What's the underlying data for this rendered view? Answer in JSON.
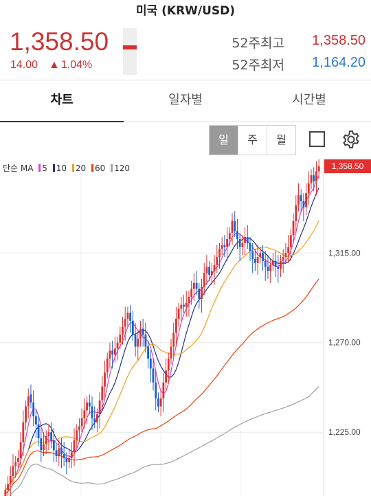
{
  "header": {
    "title": "미국 (KRW/USD)"
  },
  "quote": {
    "price": "1,358.50",
    "change": "14.00",
    "change_pct": "1.04%",
    "up_symbol": "▲",
    "week52_high_label": "52주최고",
    "week52_high": "1,358.50",
    "week52_low_label": "52주최저",
    "week52_low": "1,164.20"
  },
  "tabs": [
    {
      "label": "차트"
    },
    {
      "label": "일자별"
    },
    {
      "label": "시간별"
    }
  ],
  "period": {
    "day": "일",
    "week": "주",
    "month": "월"
  },
  "icons": {
    "checkbox": "square-outline-icon",
    "settings": "gear-icon"
  },
  "colors": {
    "up": "#e03030",
    "down": "#1a5fd0",
    "ma5": "#e040c0",
    "ma10": "#1f2f90",
    "ma20": "#f0a020",
    "ma60": "#f04010",
    "ma120": "#a0a0a0"
  },
  "chart_data": {
    "type": "candlestick",
    "legend": {
      "prefix": "단순 MA",
      "entries": [
        "5",
        "10",
        "20",
        "60",
        "120"
      ]
    },
    "y_ticks": [
      "1,315.00",
      "1,270.00",
      "1,225.00"
    ],
    "y_tick_values": [
      1315,
      1270,
      1225
    ],
    "ylim": [
      1193,
      1362
    ],
    "current_label": "1,358.50",
    "current_value": 1358.5,
    "closes": [
      1196,
      1199,
      1203,
      1208,
      1210,
      1212,
      1220,
      1230,
      1238,
      1243,
      1240,
      1233,
      1229,
      1222,
      1216,
      1219,
      1223,
      1225,
      1221,
      1216,
      1213,
      1217,
      1214,
      1212,
      1210,
      1212,
      1215,
      1221,
      1226,
      1228,
      1232,
      1236,
      1240,
      1238,
      1232,
      1230,
      1234,
      1241,
      1248,
      1255,
      1262,
      1266,
      1264,
      1267,
      1270,
      1274,
      1278,
      1282,
      1285,
      1281,
      1274,
      1268,
      1272,
      1277,
      1274,
      1268,
      1262,
      1257,
      1250,
      1242,
      1238,
      1242,
      1250,
      1256,
      1262,
      1268,
      1275,
      1282,
      1287,
      1289,
      1288,
      1290,
      1293,
      1297,
      1300,
      1297,
      1292,
      1298,
      1305,
      1308,
      1304,
      1306,
      1309,
      1313,
      1317,
      1319,
      1318,
      1322,
      1325,
      1331,
      1326,
      1322,
      1318,
      1320,
      1323,
      1320,
      1316,
      1312,
      1310,
      1313,
      1315,
      1311,
      1308,
      1306,
      1309,
      1311,
      1308,
      1307,
      1311,
      1313,
      1315,
      1318,
      1324,
      1331,
      1339,
      1344,
      1341,
      1338,
      1345,
      1350,
      1354,
      1351,
      1356,
      1358.5
    ],
    "opens": [
      1193,
      1196,
      1199,
      1203,
      1208,
      1210,
      1212,
      1220,
      1230,
      1238,
      1244,
      1240,
      1233,
      1229,
      1222,
      1216,
      1219,
      1223,
      1225,
      1221,
      1216,
      1213,
      1217,
      1214,
      1212,
      1210,
      1212,
      1215,
      1221,
      1226,
      1228,
      1232,
      1236,
      1240,
      1238,
      1232,
      1230,
      1234,
      1241,
      1248,
      1255,
      1262,
      1266,
      1264,
      1267,
      1270,
      1274,
      1278,
      1282,
      1285,
      1281,
      1274,
      1268,
      1272,
      1277,
      1274,
      1268,
      1262,
      1257,
      1250,
      1242,
      1238,
      1242,
      1250,
      1256,
      1262,
      1268,
      1275,
      1282,
      1287,
      1289,
      1288,
      1290,
      1293,
      1297,
      1300,
      1297,
      1292,
      1298,
      1305,
      1308,
      1304,
      1306,
      1309,
      1313,
      1317,
      1319,
      1318,
      1322,
      1325,
      1331,
      1326,
      1322,
      1318,
      1320,
      1323,
      1320,
      1316,
      1312,
      1310,
      1313,
      1315,
      1311,
      1308,
      1306,
      1309,
      1311,
      1308,
      1307,
      1311,
      1313,
      1315,
      1318,
      1324,
      1331,
      1339,
      1344,
      1341,
      1338,
      1345,
      1350,
      1354,
      1351,
      1356
    ]
  }
}
